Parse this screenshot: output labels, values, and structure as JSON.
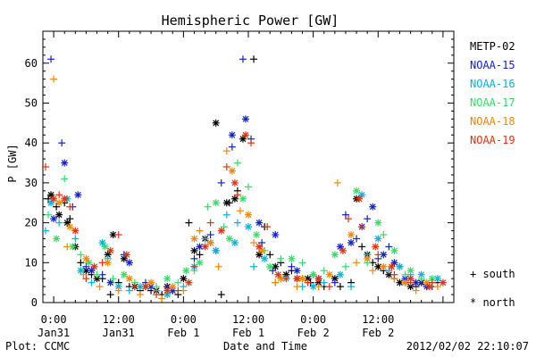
{
  "footer": {
    "plot_credit": "Plot: CCMC",
    "timestamp": "2012/02/02 22:10:07"
  },
  "legend": {
    "south_label": "+ south",
    "north_label": "* north"
  },
  "chart_data": {
    "type": "scatter",
    "title": "Hemispheric Power [GW]",
    "xlabel": "Date and Time",
    "ylabel": "P [GW]",
    "xlim": [
      -2,
      74
    ],
    "ylim": [
      0,
      68
    ],
    "grid": false,
    "legend_position": "right",
    "x_ticks": [
      {
        "x": 0,
        "line1": "0:00",
        "line2": "Jan31"
      },
      {
        "x": 12,
        "line1": "12:00",
        "line2": "Jan31"
      },
      {
        "x": 24,
        "line1": "0:00",
        "line2": "Feb 1"
      },
      {
        "x": 36,
        "line1": "12:00",
        "line2": "Feb 1"
      },
      {
        "x": 48,
        "line1": "0:00",
        "line2": "Feb 2"
      },
      {
        "x": 60,
        "line1": "12:00",
        "line2": "Feb 2"
      }
    ],
    "y_ticks": [
      0,
      10,
      20,
      30,
      40,
      50,
      60
    ],
    "series": [
      {
        "name": "METP-02",
        "color": "#000000",
        "south": [
          [
            -1.0,
            26
          ],
          [
            0.5,
            24
          ],
          [
            2.0,
            25
          ],
          [
            3.0,
            21
          ],
          [
            5.0,
            10
          ],
          [
            7.0,
            7
          ],
          [
            9.0,
            6
          ],
          [
            10.5,
            2
          ],
          [
            12.0,
            5
          ],
          [
            14.0,
            4
          ],
          [
            16.0,
            3
          ],
          [
            18.0,
            3
          ],
          [
            20.0,
            2
          ],
          [
            22.0,
            3
          ],
          [
            23.0,
            2
          ],
          [
            25.0,
            20
          ],
          [
            27.0,
            12
          ],
          [
            29.0,
            15
          ],
          [
            31.0,
            2
          ],
          [
            32.5,
            25
          ],
          [
            34.0,
            28
          ],
          [
            37.0,
            61
          ],
          [
            39.0,
            19
          ],
          [
            40.0,
            12
          ],
          [
            42.0,
            10
          ],
          [
            44.0,
            8
          ],
          [
            46.0,
            6
          ],
          [
            47.5,
            5
          ],
          [
            50.0,
            4
          ],
          [
            53.0,
            4
          ],
          [
            55.0,
            5
          ],
          [
            57.0,
            14
          ],
          [
            59.0,
            10
          ],
          [
            61.0,
            8
          ],
          [
            63.0,
            6
          ],
          [
            65.0,
            5
          ],
          [
            67.0,
            4
          ],
          [
            69.0,
            4
          ],
          [
            71.0,
            5
          ]
        ],
        "north": [
          [
            -0.5,
            27
          ],
          [
            1.0,
            22
          ],
          [
            2.5,
            20
          ],
          [
            4.0,
            14
          ],
          [
            6.0,
            8
          ],
          [
            8.0,
            6
          ],
          [
            10.0,
            12
          ],
          [
            11.0,
            17
          ],
          [
            13.0,
            11
          ],
          [
            15.0,
            4
          ],
          [
            17.0,
            4
          ],
          [
            19.0,
            3
          ],
          [
            21.0,
            4
          ],
          [
            24.0,
            6
          ],
          [
            26.0,
            13
          ],
          [
            28.0,
            16
          ],
          [
            30.0,
            45
          ],
          [
            32.0,
            25
          ],
          [
            33.5,
            26
          ],
          [
            35.0,
            41
          ],
          [
            38.0,
            12
          ],
          [
            41.0,
            9
          ],
          [
            43.0,
            7
          ],
          [
            45.0,
            6
          ],
          [
            47.0,
            6
          ],
          [
            49.0,
            5
          ],
          [
            52.0,
            6
          ],
          [
            56.0,
            26
          ],
          [
            58.0,
            12
          ],
          [
            60.0,
            9
          ],
          [
            62.0,
            7
          ],
          [
            64.0,
            5
          ],
          [
            66.0,
            4
          ],
          [
            68.0,
            5
          ]
        ]
      },
      {
        "name": "NOAA-15",
        "color": "#1122cc",
        "south": [
          [
            -0.5,
            61
          ],
          [
            1.5,
            40
          ],
          [
            3.5,
            24
          ],
          [
            6.0,
            9
          ],
          [
            9.0,
            7
          ],
          [
            13.0,
            12
          ],
          [
            17.0,
            5
          ],
          [
            21.0,
            4
          ],
          [
            26.0,
            11
          ],
          [
            29.0,
            17
          ],
          [
            31.0,
            30
          ],
          [
            33.0,
            39
          ],
          [
            35.0,
            61
          ],
          [
            36.5,
            41
          ],
          [
            38.5,
            15
          ],
          [
            40.5,
            8
          ],
          [
            44.0,
            9
          ],
          [
            48.0,
            7
          ],
          [
            52.0,
            5
          ],
          [
            54.0,
            22
          ],
          [
            56.0,
            16
          ],
          [
            58.0,
            21
          ],
          [
            60.0,
            11
          ],
          [
            62.0,
            14
          ],
          [
            64.0,
            9
          ],
          [
            66.0,
            6
          ],
          [
            68.0,
            5
          ],
          [
            70.0,
            4
          ]
        ],
        "north": [
          [
            0.0,
            21
          ],
          [
            2.0,
            35
          ],
          [
            4.5,
            27
          ],
          [
            7.0,
            8
          ],
          [
            10.5,
            5
          ],
          [
            14.0,
            10
          ],
          [
            18.0,
            4
          ],
          [
            22.0,
            3
          ],
          [
            27.0,
            14
          ],
          [
            30.0,
            13
          ],
          [
            33.0,
            42
          ],
          [
            35.5,
            46
          ],
          [
            38.0,
            20
          ],
          [
            41.0,
            17
          ],
          [
            45.0,
            8
          ],
          [
            49.0,
            6
          ],
          [
            53.0,
            14
          ],
          [
            55.0,
            15
          ],
          [
            57.0,
            19
          ],
          [
            59.0,
            24
          ],
          [
            61.0,
            12
          ],
          [
            63.0,
            10
          ],
          [
            65.0,
            6
          ],
          [
            67.0,
            5
          ],
          [
            69.0,
            4
          ]
        ]
      },
      {
        "name": "NOAA-16",
        "color": "#00b4d8",
        "south": [
          [
            -1.5,
            18
          ],
          [
            1.0,
            20
          ],
          [
            4.0,
            16
          ],
          [
            7.0,
            5
          ],
          [
            10.0,
            11
          ],
          [
            14.0,
            3
          ],
          [
            19.0,
            3
          ],
          [
            24.0,
            4
          ],
          [
            28.0,
            16
          ],
          [
            32.0,
            22
          ],
          [
            34.0,
            20
          ],
          [
            37.0,
            9
          ],
          [
            41.0,
            5
          ],
          [
            46.0,
            4
          ],
          [
            50.0,
            5
          ],
          [
            55.0,
            4
          ],
          [
            58.0,
            12
          ],
          [
            62.0,
            8
          ],
          [
            66.0,
            7
          ],
          [
            70.0,
            5
          ]
        ],
        "north": [
          [
            -0.5,
            25
          ],
          [
            2.5,
            26
          ],
          [
            5.0,
            8
          ],
          [
            9.0,
            15
          ],
          [
            12.0,
            4
          ],
          [
            16.0,
            4
          ],
          [
            21.0,
            2
          ],
          [
            26.0,
            9
          ],
          [
            30.0,
            13
          ],
          [
            33.5,
            15
          ],
          [
            36.0,
            19
          ],
          [
            39.0,
            11
          ],
          [
            43.0,
            6
          ],
          [
            48.0,
            4
          ],
          [
            53.0,
            7
          ],
          [
            57.0,
            27
          ],
          [
            60.0,
            16
          ],
          [
            64.0,
            9
          ],
          [
            68.0,
            7
          ],
          [
            71.0,
            6
          ]
        ]
      },
      {
        "name": "NOAA-17",
        "color": "#33dd66",
        "south": [
          [
            -1.0,
            22
          ],
          [
            2.0,
            31
          ],
          [
            5.0,
            12
          ],
          [
            8.0,
            7
          ],
          [
            11.0,
            6
          ],
          [
            15.0,
            5
          ],
          [
            19.0,
            4
          ],
          [
            23.0,
            5
          ],
          [
            26.0,
            8
          ],
          [
            28.5,
            24
          ],
          [
            31.5,
            19
          ],
          [
            34.0,
            35
          ],
          [
            36.0,
            29
          ],
          [
            39.0,
            13
          ],
          [
            42.0,
            11
          ],
          [
            46.0,
            10
          ],
          [
            50.0,
            8
          ],
          [
            54.0,
            9
          ],
          [
            58.0,
            10
          ],
          [
            61.0,
            17
          ],
          [
            65.0,
            7
          ],
          [
            68.0,
            6
          ]
        ],
        "north": [
          [
            0.5,
            16
          ],
          [
            3.5,
            14
          ],
          [
            6.5,
            10
          ],
          [
            9.5,
            14
          ],
          [
            13.0,
            7
          ],
          [
            17.0,
            4
          ],
          [
            21.0,
            6
          ],
          [
            24.5,
            8
          ],
          [
            27.0,
            10
          ],
          [
            30.0,
            25
          ],
          [
            32.5,
            16
          ],
          [
            35.0,
            26
          ],
          [
            37.5,
            17
          ],
          [
            40.0,
            9
          ],
          [
            44.0,
            11
          ],
          [
            48.0,
            7
          ],
          [
            52.0,
            12
          ],
          [
            56.0,
            28
          ],
          [
            60.0,
            20
          ],
          [
            63.0,
            13
          ],
          [
            66.0,
            8
          ],
          [
            70.0,
            6
          ]
        ]
      },
      {
        "name": "NOAA-18",
        "color": "#ee8800",
        "south": [
          [
            0.0,
            56
          ],
          [
            2.5,
            14
          ],
          [
            5.5,
            7
          ],
          [
            8.5,
            4
          ],
          [
            12.0,
            3
          ],
          [
            16.0,
            2
          ],
          [
            20.0,
            1
          ],
          [
            24.0,
            3
          ],
          [
            27.0,
            18
          ],
          [
            30.5,
            9
          ],
          [
            32.0,
            38
          ],
          [
            34.5,
            23
          ],
          [
            37.0,
            15
          ],
          [
            41.0,
            5
          ],
          [
            45.0,
            4
          ],
          [
            49.0,
            4
          ],
          [
            52.5,
            30
          ],
          [
            56.0,
            10
          ],
          [
            59.0,
            8
          ],
          [
            63.0,
            6
          ],
          [
            67.0,
            3
          ],
          [
            71.0,
            4
          ]
        ],
        "north": [
          [
            1.0,
            25
          ],
          [
            3.0,
            19
          ],
          [
            6.0,
            11
          ],
          [
            10.0,
            10
          ],
          [
            14.0,
            6
          ],
          [
            18.0,
            5
          ],
          [
            22.0,
            4
          ],
          [
            26.0,
            16
          ],
          [
            29.0,
            15
          ],
          [
            33.0,
            33
          ],
          [
            36.0,
            22
          ],
          [
            38.5,
            13
          ],
          [
            42.0,
            6
          ],
          [
            46.0,
            6
          ],
          [
            51.0,
            7
          ],
          [
            55.0,
            17
          ],
          [
            58.0,
            11
          ],
          [
            61.0,
            9
          ],
          [
            65.0,
            5
          ],
          [
            69.0,
            5
          ]
        ]
      },
      {
        "name": "NOAA-19",
        "color": "#dd3311",
        "south": [
          [
            -1.5,
            34
          ],
          [
            1.0,
            27
          ],
          [
            3.0,
            24
          ],
          [
            6.0,
            6
          ],
          [
            9.0,
            10
          ],
          [
            12.0,
            17
          ],
          [
            15.0,
            4
          ],
          [
            19.0,
            2
          ],
          [
            23.0,
            3
          ],
          [
            26.0,
            9
          ],
          [
            29.0,
            20
          ],
          [
            32.0,
            34
          ],
          [
            34.0,
            27
          ],
          [
            36.5,
            40
          ],
          [
            39.5,
            19
          ],
          [
            43.0,
            6
          ],
          [
            47.0,
            5
          ],
          [
            51.0,
            4
          ],
          [
            54.5,
            21
          ],
          [
            57.0,
            19
          ],
          [
            60.0,
            12
          ],
          [
            63.0,
            7
          ],
          [
            66.0,
            5
          ],
          [
            70.0,
            5
          ]
        ],
        "north": [
          [
            0.0,
            26
          ],
          [
            2.0,
            26
          ],
          [
            4.0,
            18
          ],
          [
            7.5,
            9
          ],
          [
            10.5,
            13
          ],
          [
            13.5,
            12
          ],
          [
            17.0,
            4
          ],
          [
            21.0,
            3
          ],
          [
            25.0,
            5
          ],
          [
            28.0,
            14
          ],
          [
            31.0,
            18
          ],
          [
            33.5,
            30
          ],
          [
            35.5,
            42
          ],
          [
            38.0,
            14
          ],
          [
            41.5,
            7
          ],
          [
            45.0,
            6
          ],
          [
            49.0,
            6
          ],
          [
            53.5,
            13
          ],
          [
            56.5,
            26
          ],
          [
            59.5,
            14
          ],
          [
            62.5,
            9
          ],
          [
            66.0,
            6
          ],
          [
            69.5,
            4
          ],
          [
            72.0,
            5
          ]
        ]
      }
    ]
  }
}
